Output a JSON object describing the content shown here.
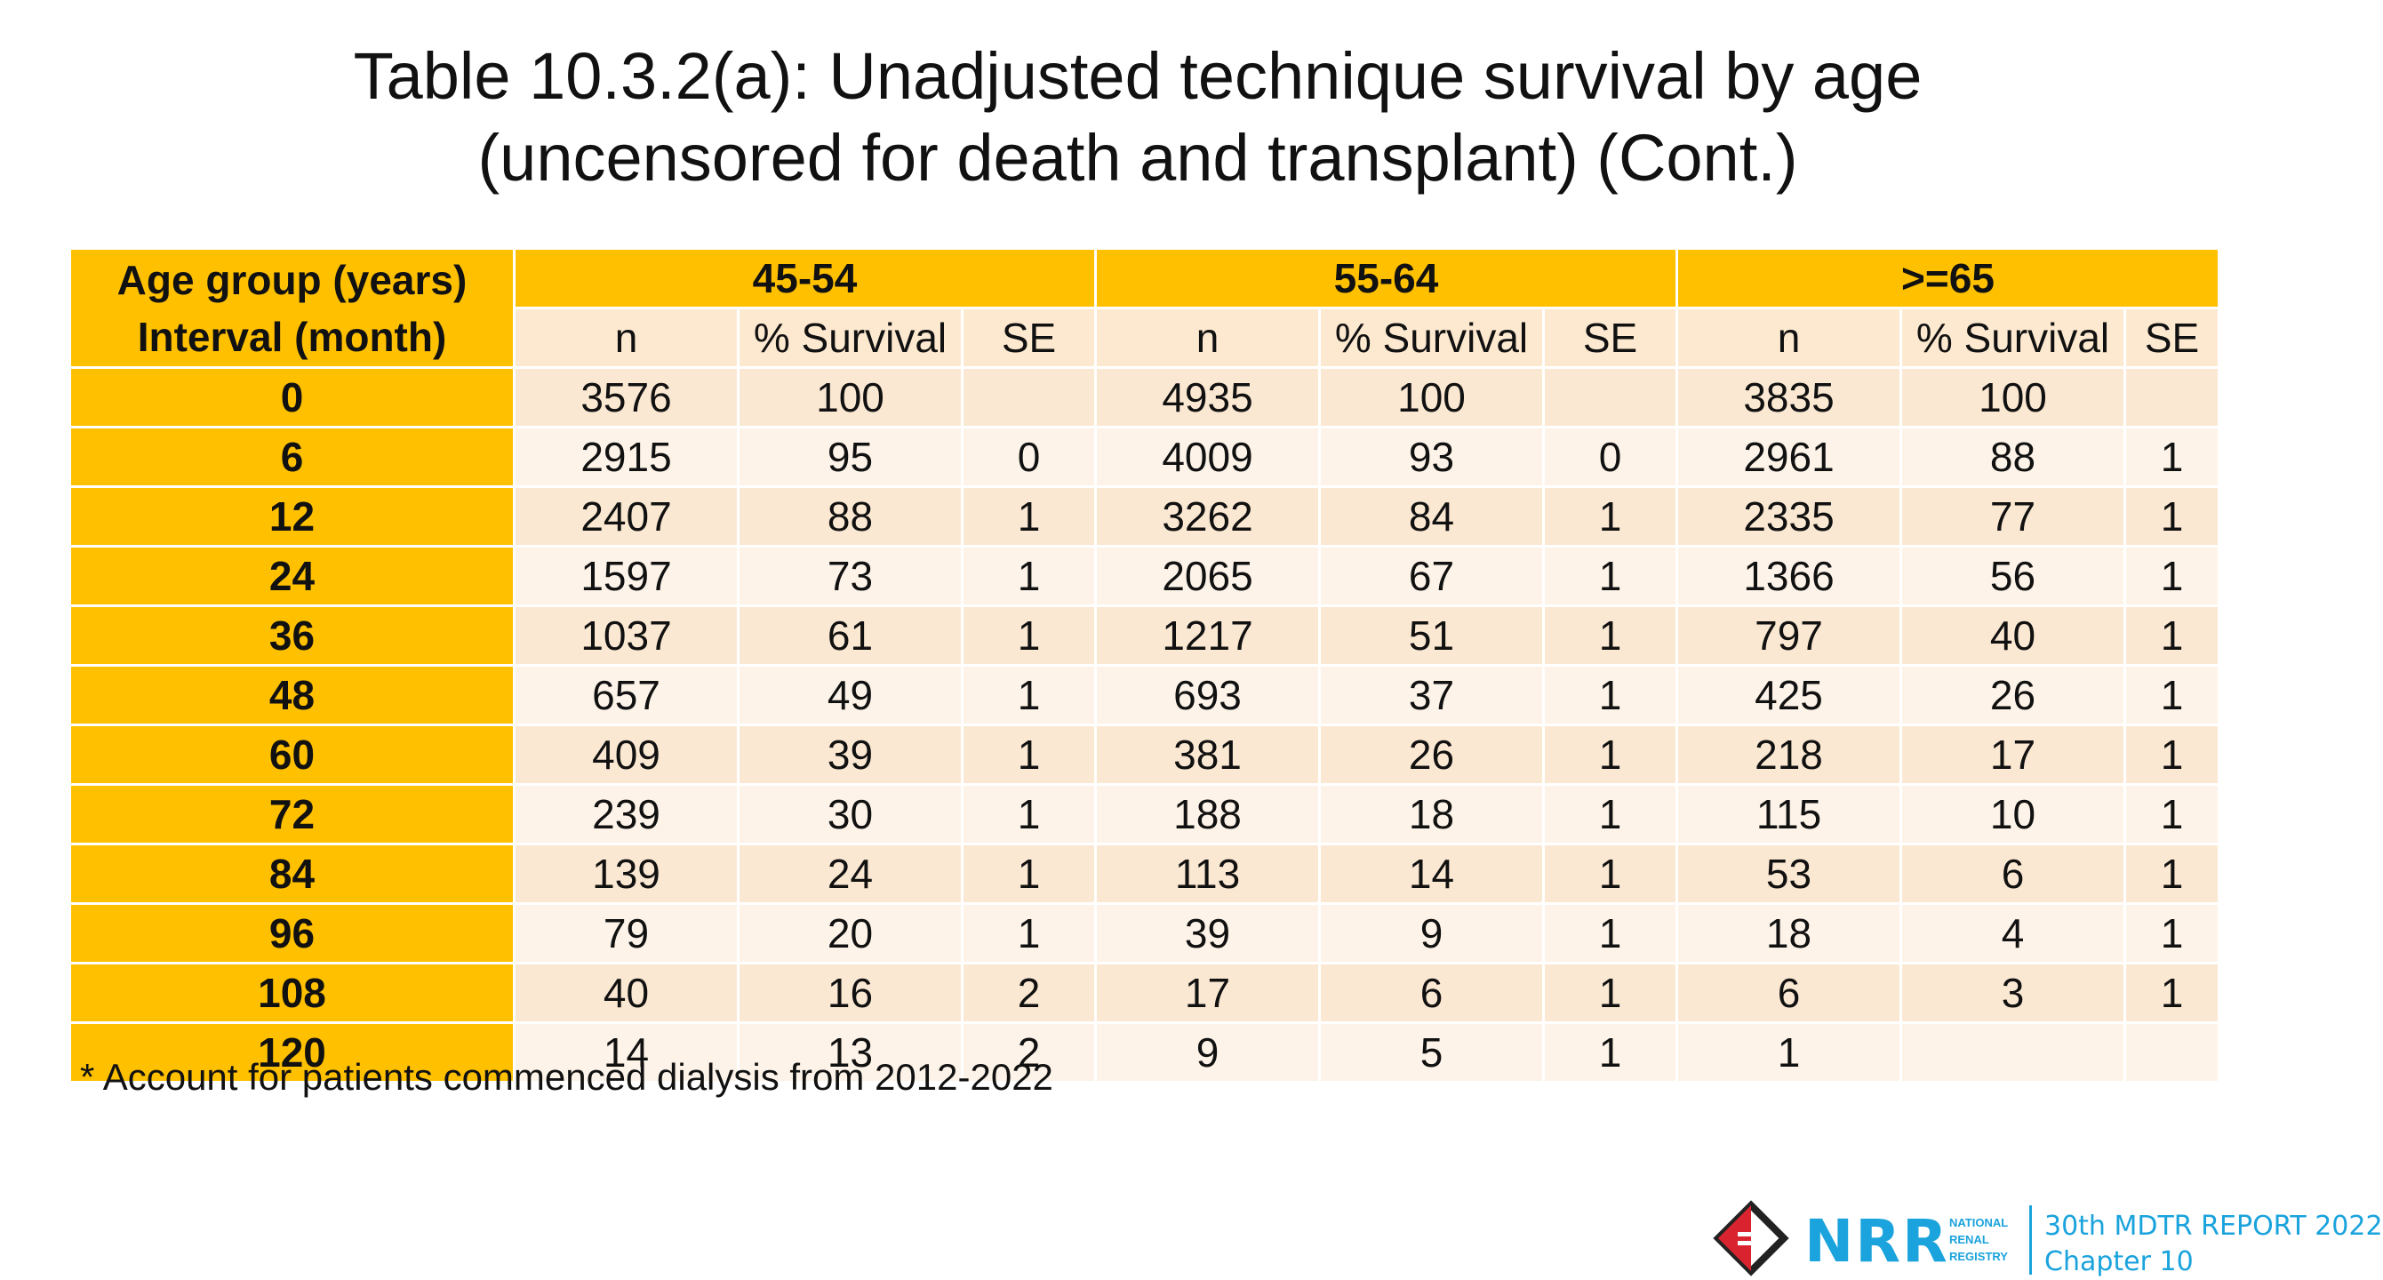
{
  "title": {
    "line1": "Table 10.3.2(a): Unadjusted technique survival by age",
    "line2": "(uncensored for death and transplant) (Cont.)"
  },
  "table": {
    "header_label_line1": "Age group (years)",
    "header_label_line2": "Interval (month)",
    "groups": [
      "45-54",
      "55-64",
      ">=65"
    ],
    "subheaders": [
      "n",
      "% Survival",
      "SE"
    ],
    "rows": [
      {
        "interval": "0",
        "values": [
          "3576",
          "100",
          "",
          "4935",
          "100",
          "",
          "3835",
          "100",
          ""
        ]
      },
      {
        "interval": "6",
        "values": [
          "2915",
          "95",
          "0",
          "4009",
          "93",
          "0",
          "2961",
          "88",
          "1"
        ]
      },
      {
        "interval": "12",
        "values": [
          "2407",
          "88",
          "1",
          "3262",
          "84",
          "1",
          "2335",
          "77",
          "1"
        ]
      },
      {
        "interval": "24",
        "values": [
          "1597",
          "73",
          "1",
          "2065",
          "67",
          "1",
          "1366",
          "56",
          "1"
        ]
      },
      {
        "interval": "36",
        "values": [
          "1037",
          "61",
          "1",
          "1217",
          "51",
          "1",
          "797",
          "40",
          "1"
        ]
      },
      {
        "interval": "48",
        "values": [
          "657",
          "49",
          "1",
          "693",
          "37",
          "1",
          "425",
          "26",
          "1"
        ]
      },
      {
        "interval": "60",
        "values": [
          "409",
          "39",
          "1",
          "381",
          "26",
          "1",
          "218",
          "17",
          "1"
        ]
      },
      {
        "interval": "72",
        "values": [
          "239",
          "30",
          "1",
          "188",
          "18",
          "1",
          "115",
          "10",
          "1"
        ]
      },
      {
        "interval": "84",
        "values": [
          "139",
          "24",
          "1",
          "113",
          "14",
          "1",
          "53",
          "6",
          "1"
        ]
      },
      {
        "interval": "96",
        "values": [
          "79",
          "20",
          "1",
          "39",
          "9",
          "1",
          "18",
          "4",
          "1"
        ]
      },
      {
        "interval": "108",
        "values": [
          "40",
          "16",
          "2",
          "17",
          "6",
          "1",
          "6",
          "3",
          "1"
        ]
      },
      {
        "interval": "120",
        "values": [
          "14",
          "13",
          "2",
          "9",
          "5",
          "1",
          "1",
          "",
          ""
        ]
      }
    ]
  },
  "footnote": "* Account for patients commenced dialysis from 2012-2022",
  "footer": {
    "logo_text": "NRR",
    "logo_small": [
      "NATIONAL",
      "RENAL",
      "REGISTRY"
    ],
    "report": "30th MDTR REPORT 2022",
    "chapter": "Chapter 10"
  },
  "colors": {
    "header": "#ffc000",
    "subheader": "#fde9d0",
    "row_odd": "#fbe8d2",
    "row_even": "#fdf3e8",
    "brand": "#1aa3dc"
  }
}
